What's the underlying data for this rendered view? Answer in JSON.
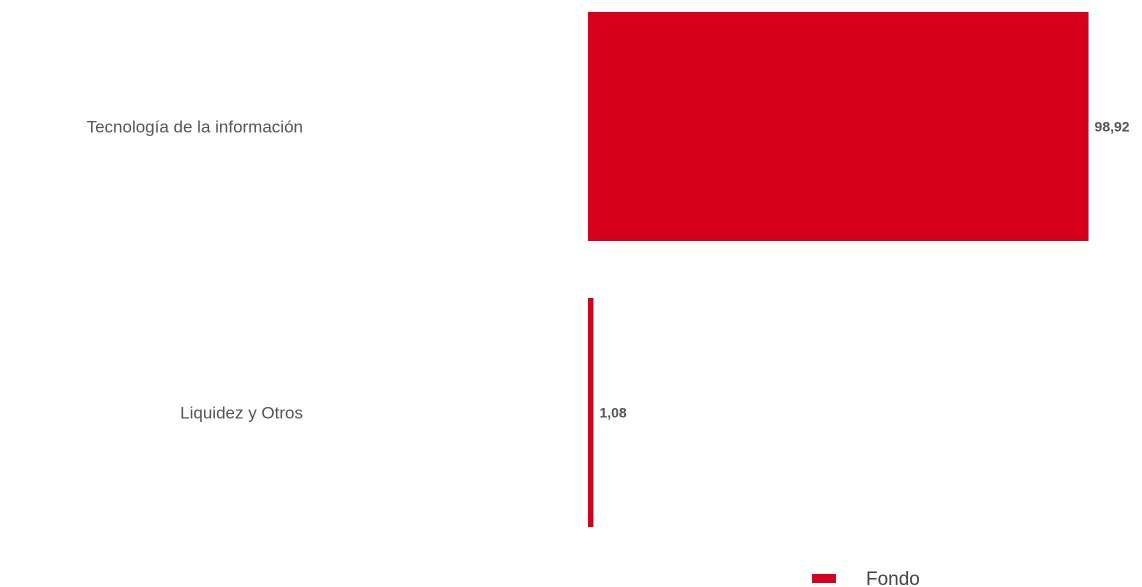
{
  "chart_data": {
    "type": "bar",
    "orientation": "horizontal",
    "categories": [
      "Tecnología de la información",
      "Liquidez y Otros"
    ],
    "series": [
      {
        "name": "Fondo",
        "values": [
          98.92,
          1.08
        ],
        "value_labels": [
          "98,92",
          "1,08"
        ],
        "color": "#d7001c"
      }
    ],
    "xlim": [
      0,
      100
    ],
    "grid": false,
    "legend": "bottom-right"
  }
}
